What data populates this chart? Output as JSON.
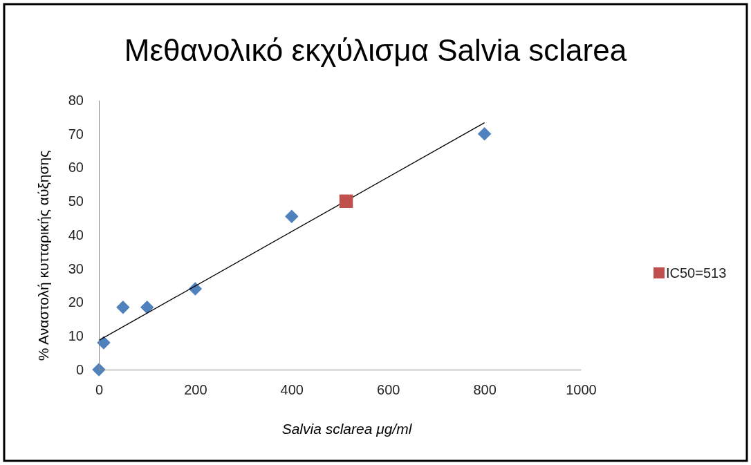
{
  "chart_data": {
    "type": "scatter",
    "title": "Μεθανολικό εκχύλισμα Salvia sclarea",
    "xlabel": "Salvia sclarea μg/ml",
    "ylabel": "% Αναστολή κυτταρικής αύξησης",
    "xlim": [
      0,
      1000
    ],
    "xticks": [
      0,
      200,
      400,
      600,
      800,
      1000
    ],
    "ylim": [
      0,
      80
    ],
    "yticks": [
      0,
      10,
      20,
      30,
      40,
      50,
      60,
      70,
      80
    ],
    "grid": false,
    "legend": "right",
    "series": [
      {
        "marker": "diamond",
        "color": "#4f81bd",
        "x": [
          0,
          10,
          50,
          100,
          200,
          400,
          800
        ],
        "values": [
          0,
          8,
          18.5,
          18.5,
          24,
          45.5,
          70
        ]
      },
      {
        "type": "line",
        "marker": "none",
        "color": "#000000",
        "x": [
          0,
          800
        ],
        "values": [
          8.7,
          73.3
        ]
      },
      {
        "marker": "square",
        "name": "IC50=513",
        "color": "#c0504d",
        "x": [
          513
        ],
        "values": [
          50
        ]
      }
    ]
  }
}
